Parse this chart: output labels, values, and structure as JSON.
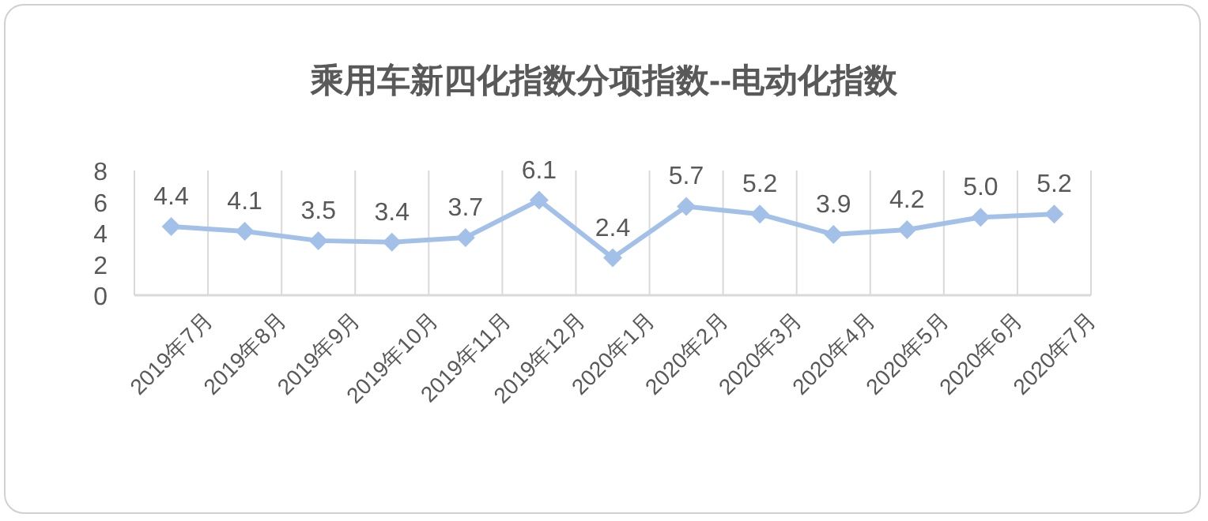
{
  "chart_data": {
    "type": "line",
    "title": "乘用车新四化指数分项指数--电动化指数",
    "categories": [
      "2019年7月",
      "2019年8月",
      "2019年9月",
      "2019年10月",
      "2019年11月",
      "2019年12月",
      "2020年1月",
      "2020年2月",
      "2020年3月",
      "2020年4月",
      "2020年5月",
      "2020年6月",
      "2020年7月"
    ],
    "series": [
      {
        "color": "#a3c1e8",
        "values": [
          4.4,
          4.1,
          3.5,
          3.4,
          3.7,
          6.1,
          2.4,
          5.7,
          5.2,
          3.9,
          4.2,
          5.0,
          5.2
        ],
        "value_labels": [
          "4.4",
          "4.1",
          "3.5",
          "3.4",
          "3.7",
          "6.1",
          "2.4",
          "5.7",
          "5.2",
          "3.9",
          "4.2",
          "5.0",
          "5.2"
        ]
      }
    ],
    "ylim": [
      0,
      8
    ],
    "yticks": [
      0,
      2,
      4,
      6,
      8
    ],
    "grid": "x",
    "marker": "diamond"
  }
}
